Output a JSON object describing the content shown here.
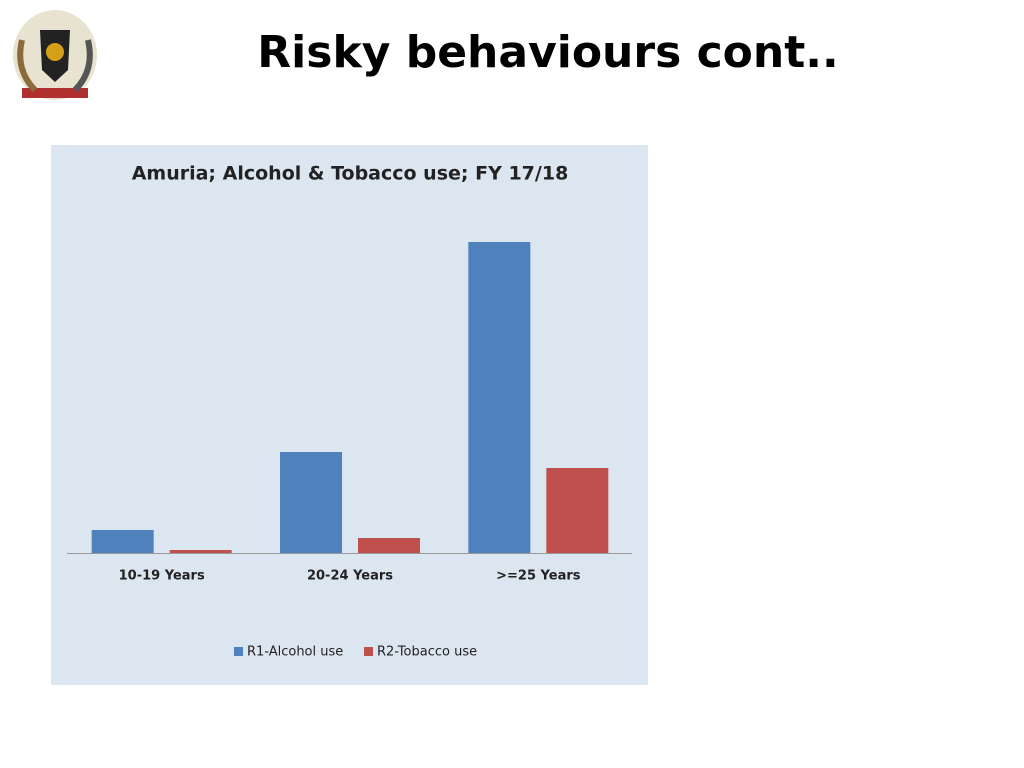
{
  "title": "Risky behaviours cont..",
  "chart_data": {
    "type": "bar",
    "title": "Amuria; Alcohol & Tobacco use; FY 17/18",
    "categories": [
      "10-19 Years",
      "20-24 Years",
      ">=25 Years"
    ],
    "series": [
      {
        "name": "R1-Alcohol use",
        "color": "#4f81bd",
        "values": [
          23,
          101,
          311
        ]
      },
      {
        "name": "R2-Tobacco use",
        "color": "#c0504d",
        "values": [
          3,
          15,
          85
        ]
      }
    ],
    "legend": "bottom"
  }
}
